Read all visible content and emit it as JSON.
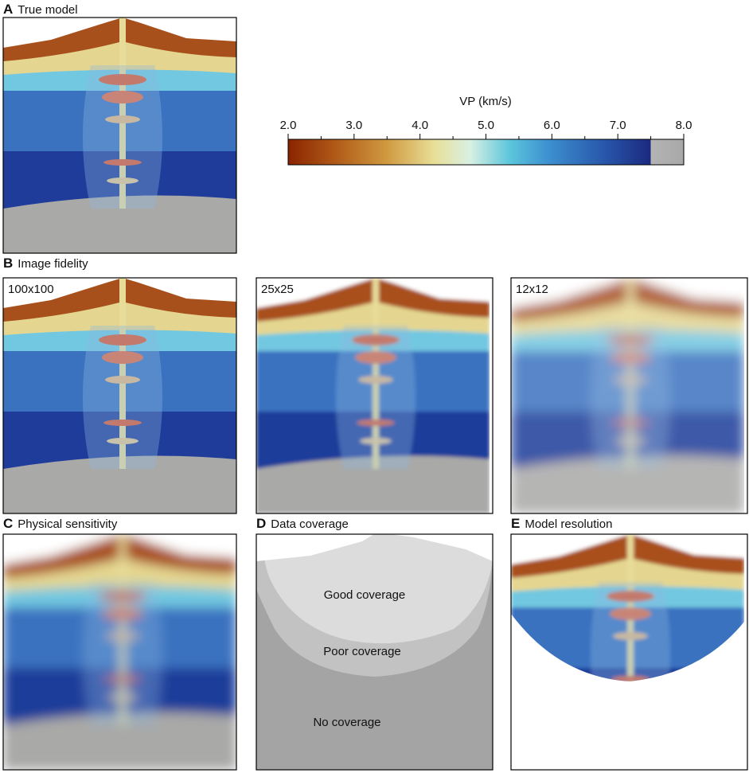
{
  "figure": {
    "colorbar": {
      "label": "VP (km/s)",
      "lim": [
        2,
        8
      ],
      "ticks": [
        {
          "value": 2,
          "label": "2.0"
        },
        {
          "value": 3,
          "label": "3.0"
        },
        {
          "value": 4,
          "label": "4.0"
        },
        {
          "value": 5,
          "label": "5.0"
        },
        {
          "value": 6,
          "label": "6.0"
        },
        {
          "value": 7,
          "label": "7.0"
        },
        {
          "value": 8,
          "label": "8.0"
        }
      ],
      "minor_ticks": [
        2.5,
        3.5,
        4.5,
        5.5,
        6.5,
        7.5
      ]
    },
    "panels": [
      {
        "letter": "A",
        "title": "True model"
      },
      {
        "letter": "B",
        "title": "Image fidelity",
        "subpanels": [
          "100x100",
          "25x25",
          "12x12"
        ]
      },
      {
        "letter": "C",
        "title": "Physical sensitivity"
      },
      {
        "letter": "D",
        "title": "Data coverage",
        "regions": [
          "Good coverage",
          "Poor coverage",
          "No coverage"
        ]
      },
      {
        "letter": "E",
        "title": "Model resolution"
      }
    ]
  }
}
